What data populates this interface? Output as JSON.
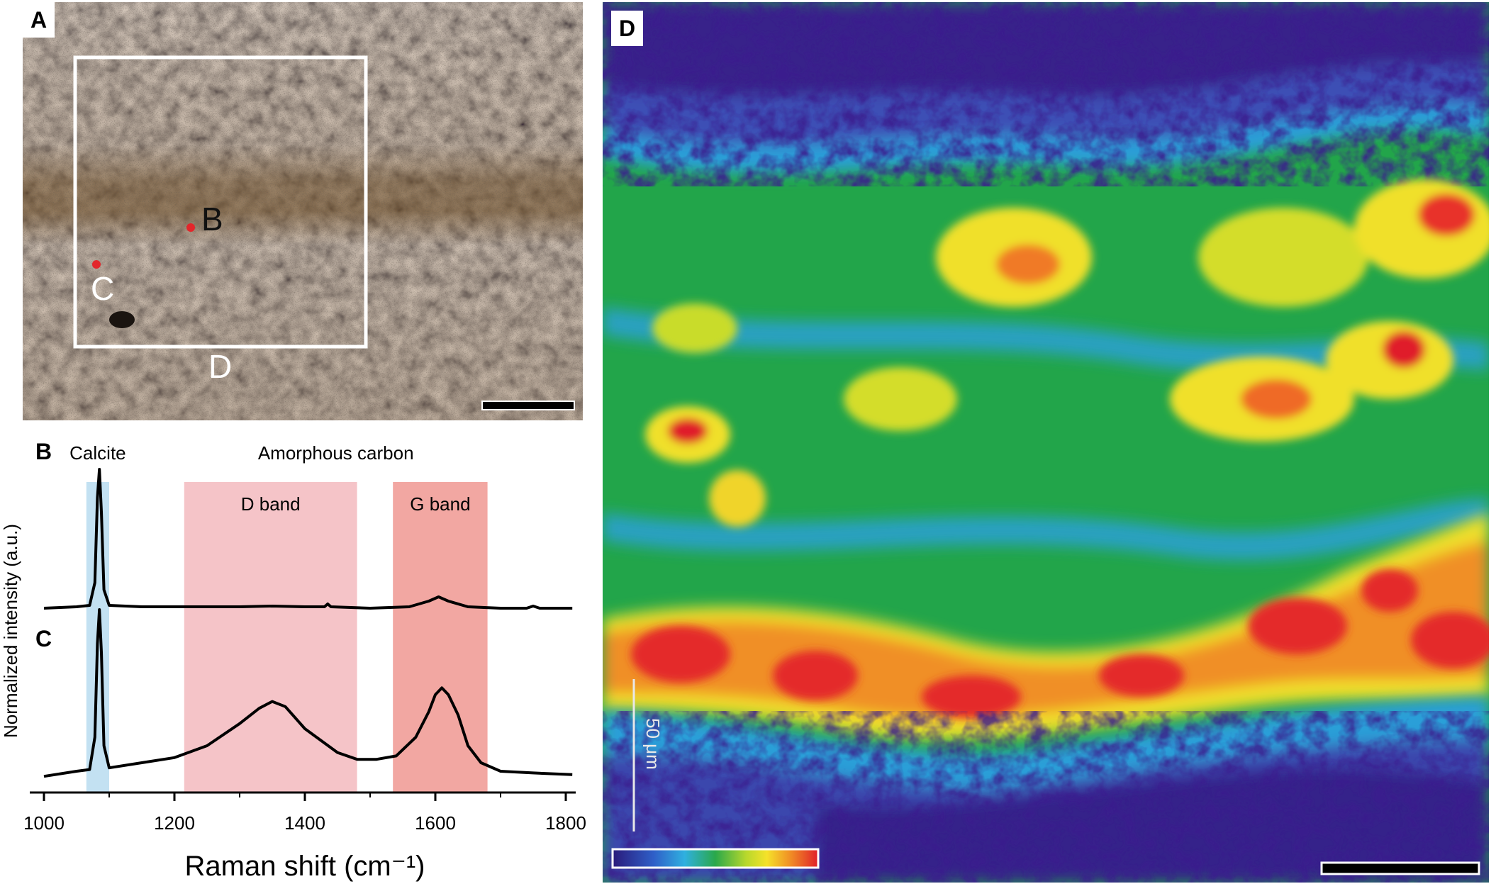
{
  "figure": {
    "panels": {
      "a": {
        "letter": "A",
        "labels": {
          "b": "B",
          "c": "C",
          "d": "D"
        }
      },
      "d": {
        "letter": "D",
        "scale_label": "50 μm"
      }
    }
  },
  "chart_data": {
    "type": "line",
    "panel_letters": [
      "B",
      "C"
    ],
    "xlabel": "Raman shift (cm⁻¹)",
    "ylabel": "Normalized intensity (a.u.)",
    "xlim": [
      1000,
      1800
    ],
    "xticks": [
      1000,
      1200,
      1400,
      1600,
      1800
    ],
    "bands": [
      {
        "name": "Calcite",
        "range": [
          1065,
          1100
        ],
        "color": "#c3e1f2"
      },
      {
        "name": "D band",
        "range": [
          1215,
          1480
        ],
        "color": "#f5c4c8"
      },
      {
        "name": "G band",
        "range": [
          1535,
          1680
        ],
        "color": "#f2a7a2"
      }
    ],
    "group_label": "Amorphous carbon",
    "series": [
      {
        "x": [
          1000,
          1050,
          1070,
          1078,
          1082,
          1085,
          1088,
          1092,
          1100,
          1150,
          1200,
          1250,
          1300,
          1350,
          1400,
          1430,
          1435,
          1440,
          1500,
          1560,
          1590,
          1605,
          1610,
          1620,
          1650,
          1700,
          1740,
          1750,
          1760,
          1810
        ],
        "y": [
          0.02,
          0.03,
          0.04,
          0.2,
          0.8,
          1.0,
          0.7,
          0.15,
          0.04,
          0.03,
          0.03,
          0.03,
          0.03,
          0.035,
          0.03,
          0.03,
          0.05,
          0.03,
          0.02,
          0.03,
          0.07,
          0.1,
          0.09,
          0.07,
          0.03,
          0.02,
          0.02,
          0.035,
          0.02,
          0.02
        ]
      },
      {
        "x": [
          1000,
          1050,
          1070,
          1078,
          1082,
          1085,
          1088,
          1092,
          1100,
          1150,
          1200,
          1250,
          1300,
          1330,
          1350,
          1370,
          1400,
          1450,
          1480,
          1510,
          1540,
          1570,
          1590,
          1600,
          1610,
          1620,
          1635,
          1650,
          1670,
          1700,
          1750,
          1810
        ],
        "y": [
          0.02,
          0.05,
          0.06,
          0.25,
          0.8,
          1.0,
          0.75,
          0.2,
          0.07,
          0.1,
          0.13,
          0.2,
          0.33,
          0.42,
          0.46,
          0.43,
          0.3,
          0.16,
          0.12,
          0.12,
          0.14,
          0.25,
          0.4,
          0.5,
          0.54,
          0.5,
          0.38,
          0.2,
          0.1,
          0.05,
          0.04,
          0.03
        ]
      }
    ]
  }
}
